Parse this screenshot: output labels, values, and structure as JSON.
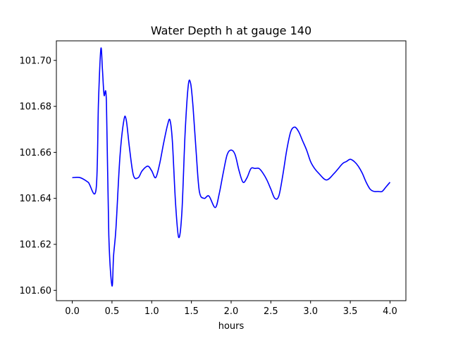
{
  "chart_data": {
    "type": "line",
    "title": "Water Depth h at gauge 140",
    "xlabel": "hours",
    "ylabel": "",
    "xlim": [
      -0.2,
      4.2
    ],
    "ylim": [
      101.5955,
      101.7085
    ],
    "xticks": [
      0.0,
      0.5,
      1.0,
      1.5,
      2.0,
      2.5,
      3.0,
      3.5,
      4.0
    ],
    "xtick_labels": [
      "0.0",
      "0.5",
      "1.0",
      "1.5",
      "2.0",
      "2.5",
      "3.0",
      "3.5",
      "4.0"
    ],
    "yticks": [
      101.6,
      101.62,
      101.64,
      101.66,
      101.68,
      101.7
    ],
    "ytick_labels": [
      "101.60",
      "101.62",
      "101.64",
      "101.66",
      "101.68",
      "101.70"
    ],
    "grid": false,
    "series": [
      {
        "color": "#0000ff",
        "x": [
          0.0,
          0.1,
          0.2,
          0.3,
          0.33,
          0.36,
          0.38,
          0.4,
          0.43,
          0.46,
          0.5,
          0.52,
          0.55,
          0.6,
          0.65,
          0.68,
          0.72,
          0.77,
          0.83,
          0.88,
          0.95,
          1.0,
          1.05,
          1.1,
          1.15,
          1.2,
          1.23,
          1.26,
          1.3,
          1.34,
          1.38,
          1.42,
          1.46,
          1.49,
          1.52,
          1.56,
          1.6,
          1.66,
          1.72,
          1.8,
          1.85,
          1.9,
          1.95,
          2.0,
          2.05,
          2.1,
          2.15,
          2.2,
          2.25,
          2.3,
          2.35,
          2.4,
          2.45,
          2.5,
          2.55,
          2.6,
          2.65,
          2.7,
          2.75,
          2.8,
          2.85,
          2.9,
          2.95,
          3.0,
          3.05,
          3.1,
          3.2,
          3.3,
          3.4,
          3.45,
          3.5,
          3.55,
          3.6,
          3.65,
          3.7,
          3.75,
          3.8,
          3.85,
          3.9,
          3.95,
          4.0
        ],
        "y": [
          101.649,
          101.649,
          101.647,
          101.644,
          101.682,
          101.705,
          101.696,
          101.685,
          101.682,
          101.624,
          101.602,
          101.615,
          101.627,
          101.658,
          101.674,
          101.674,
          101.662,
          101.65,
          101.649,
          101.652,
          101.654,
          101.652,
          101.649,
          101.655,
          101.664,
          101.672,
          101.674,
          101.665,
          101.638,
          101.623,
          101.634,
          101.668,
          101.689,
          101.69,
          101.68,
          101.66,
          101.643,
          101.64,
          101.641,
          101.636,
          101.642,
          101.651,
          101.659,
          101.661,
          101.659,
          101.652,
          101.647,
          101.649,
          101.653,
          101.653,
          101.653,
          101.651,
          101.648,
          101.644,
          101.64,
          101.641,
          101.65,
          101.661,
          101.669,
          101.671,
          101.669,
          101.665,
          101.661,
          101.656,
          101.653,
          101.651,
          101.648,
          101.651,
          101.655,
          101.656,
          101.657,
          101.656,
          101.654,
          101.651,
          101.647,
          101.644,
          101.643,
          101.643,
          101.643,
          101.645,
          101.647
        ]
      }
    ]
  }
}
